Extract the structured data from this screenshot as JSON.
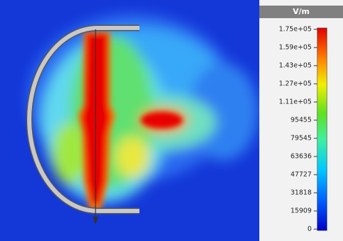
{
  "legend": {
    "unit": "V/m",
    "labels": [
      "1.75e+05",
      "1.59e+05",
      "1.43e+05",
      "1.27e+05",
      "1.11e+05",
      "95455",
      "79545",
      "63636",
      "47727",
      "31818",
      "15909",
      "0"
    ]
  }
}
